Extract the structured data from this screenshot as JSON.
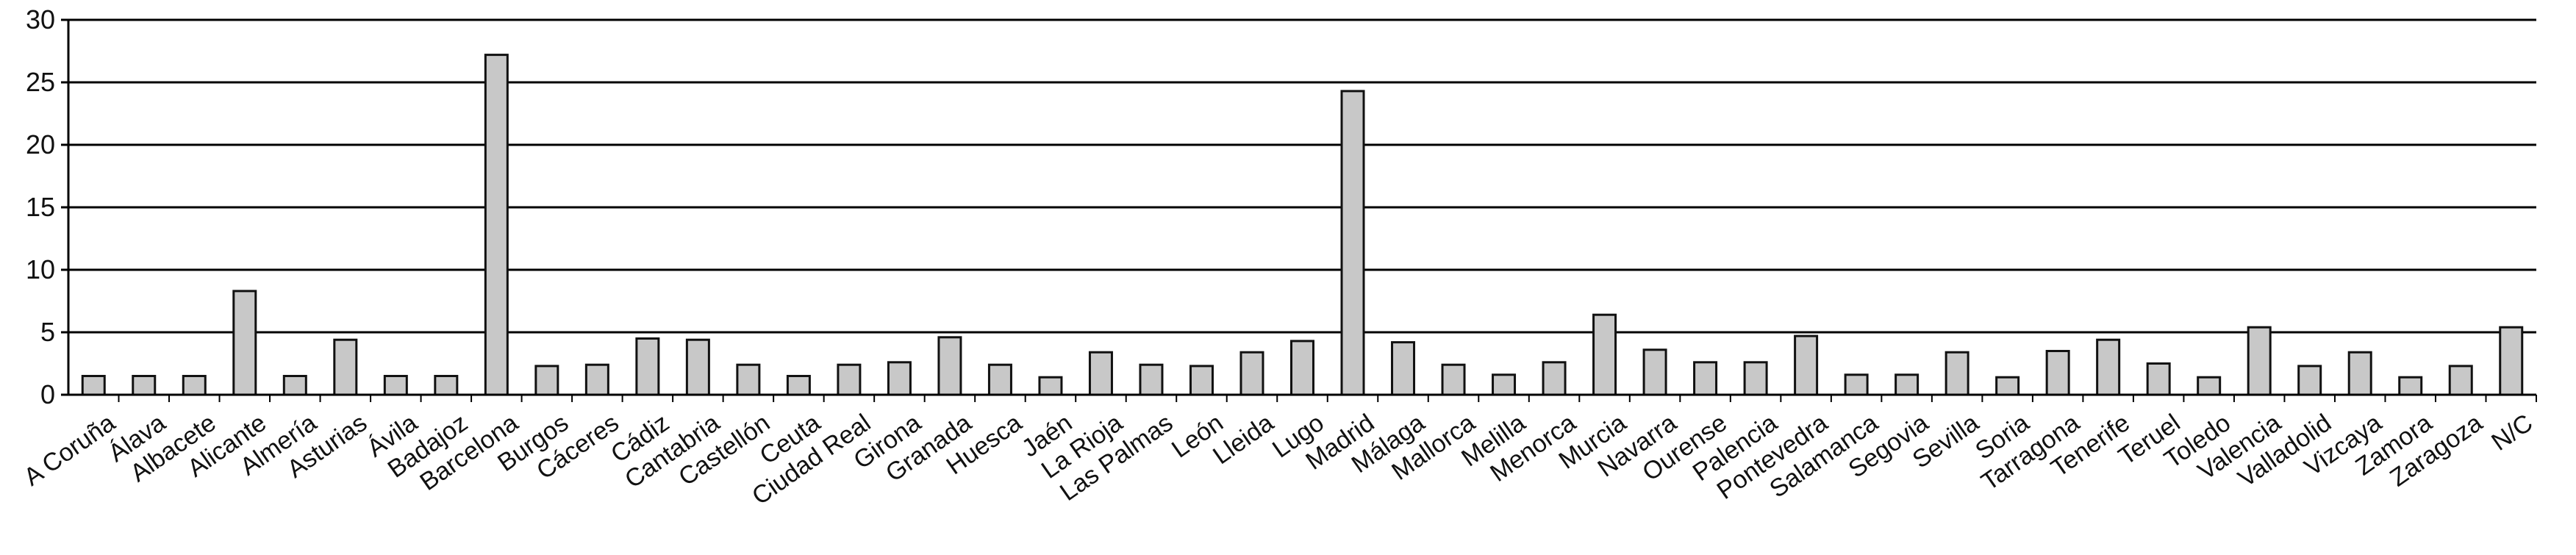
{
  "chart_data": {
    "type": "bar",
    "title": "",
    "xlabel": "",
    "ylabel": "",
    "ylim": [
      0,
      30
    ],
    "yticks": [
      0,
      5,
      10,
      15,
      20,
      25,
      30
    ],
    "grid": true,
    "legend": "none",
    "colors": {
      "bar_fill": "#c8c8c8",
      "bar_stroke": "#111111",
      "grid": "#000000",
      "axis": "#000000"
    },
    "categories": [
      "A Coruña",
      "Álava",
      "Albacete",
      "Alicante",
      "Almería",
      "Asturias",
      "Ávila",
      "Badajoz",
      "Barcelona",
      "Burgos",
      "Cáceres",
      "Cádiz",
      "Cantabria",
      "Castellón",
      "Ceuta",
      "Ciudad Real",
      "Girona",
      "Granada",
      "Huesca",
      "Jaén",
      "La Rioja",
      "Las Palmas",
      "León",
      "Lleida",
      "Lugo",
      "Madrid",
      "Málaga",
      "Mallorca",
      "Melilla",
      "Menorca",
      "Murcia",
      "Navarra",
      "Ourense",
      "Palencia",
      "Pontevedra",
      "Salamanca",
      "Segovia",
      "Sevilla",
      "Soria",
      "Tarragona",
      "Tenerife",
      "Teruel",
      "Toledo",
      "Valencia",
      "Valladolid",
      "Vizcaya",
      "Zamora",
      "Zaragoza",
      "N/C"
    ],
    "values": [
      1.5,
      1.5,
      1.5,
      8.3,
      1.5,
      4.4,
      1.5,
      1.5,
      27.2,
      2.3,
      2.4,
      4.5,
      4.4,
      2.4,
      1.5,
      2.4,
      2.6,
      4.6,
      2.4,
      1.4,
      3.4,
      2.4,
      2.3,
      3.4,
      4.3,
      24.3,
      4.2,
      2.4,
      1.6,
      2.6,
      6.4,
      3.6,
      2.6,
      2.6,
      4.7,
      1.6,
      1.6,
      3.4,
      1.4,
      3.5,
      4.4,
      2.5,
      1.4,
      5.4,
      2.3,
      3.4,
      1.4,
      2.3,
      5.4
    ]
  }
}
